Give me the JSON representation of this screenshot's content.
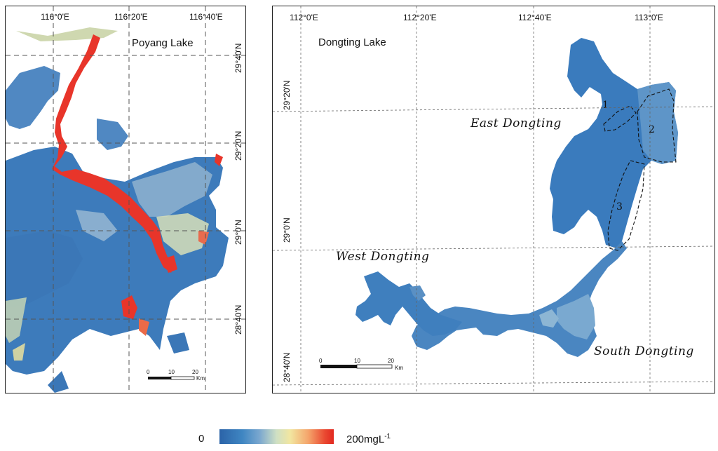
{
  "poyang": {
    "title": "Poyang Lake",
    "lon_labels": [
      "116°0'E",
      "116°20'E",
      "116°40'E"
    ],
    "lat_labels": [
      "29°40'N",
      "29°20'N",
      "29°0'N",
      "28°40'N"
    ],
    "scalebar": {
      "ticks": [
        "0",
        "10",
        "20"
      ],
      "unit": "Km"
    }
  },
  "dongting": {
    "title": "Dongting Lake",
    "lon_labels": [
      "112°0'E",
      "112°20'E",
      "112°40'E",
      "113°0'E"
    ],
    "lat_labels": [
      "29°20'N",
      "29°0'N",
      "28°40'N"
    ],
    "regions": {
      "east": "East Dongting",
      "west": "West Dongting",
      "south": "South Dongting"
    },
    "zones": [
      "1",
      "2",
      "3"
    ],
    "scalebar": {
      "ticks": [
        "0",
        "10",
        "20"
      ],
      "unit": "Km"
    }
  },
  "legend": {
    "min_label": "0",
    "max_value": "200",
    "unit": "mgL",
    "unit_exponent": "-1"
  },
  "colors": {
    "low": "#2b63a8",
    "mid": "#f2e6a0",
    "high": "#e2281f"
  }
}
